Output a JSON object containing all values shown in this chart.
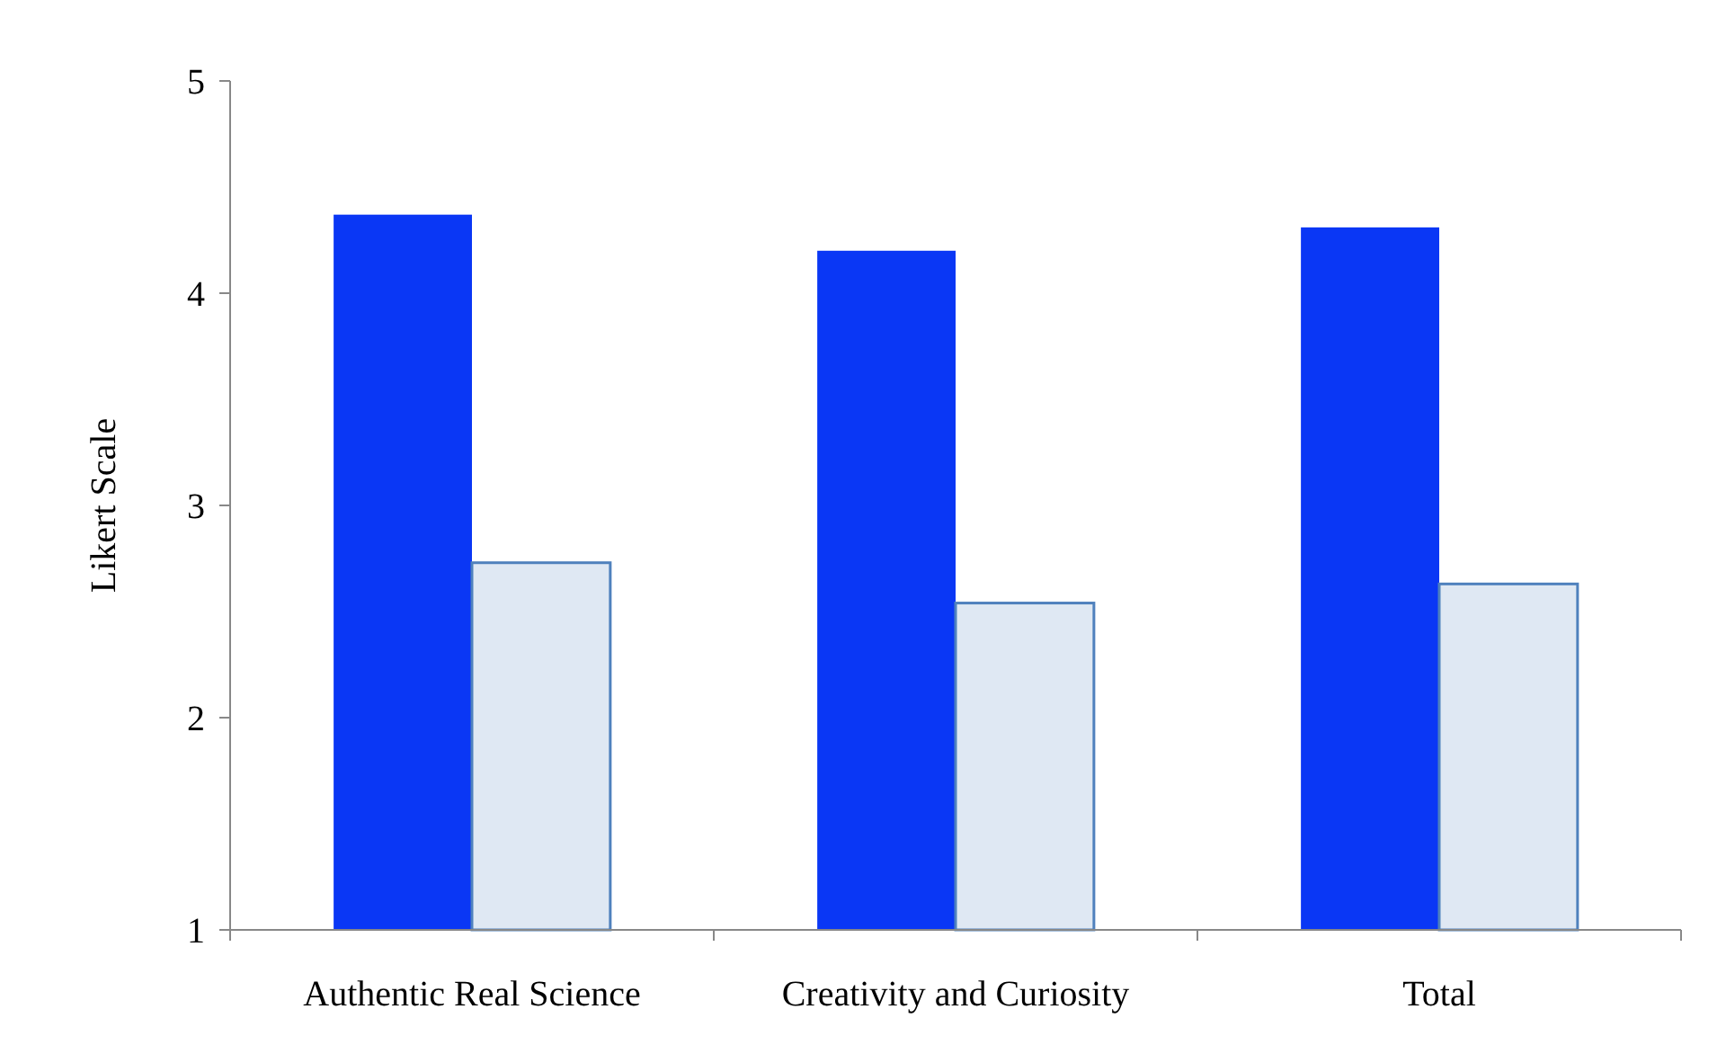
{
  "chart_data": {
    "type": "bar",
    "ylabel": "Likert Scale",
    "categories": [
      "Authentic Real Science",
      "Creativity and Curiosity",
      "Total"
    ],
    "series": [
      {
        "color": "#0a37f5",
        "values": [
          4.37,
          4.2,
          4.31
        ]
      },
      {
        "color": "#dfe8f3",
        "values": [
          2.73,
          2.54,
          2.63
        ]
      }
    ],
    "ylim": [
      1,
      5
    ],
    "yticks": [
      1,
      2,
      3,
      4,
      5
    ],
    "grid": false
  }
}
